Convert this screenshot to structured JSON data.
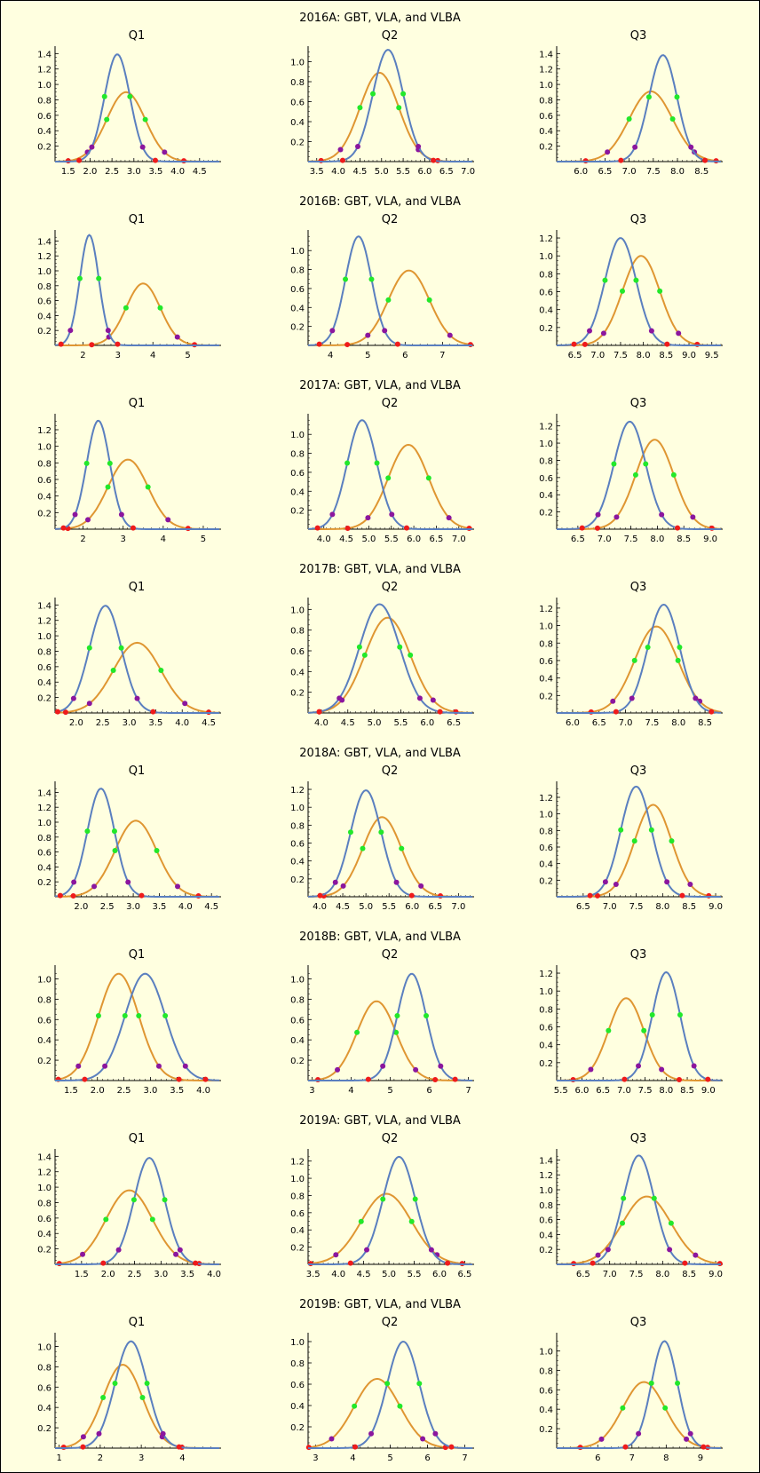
{
  "chart_data": {
    "type": "line",
    "series_styles": {
      "blue": {
        "color": "#5a7fbf"
      },
      "orange": {
        "color": "#df9632"
      }
    },
    "marker_colors": {
      "green": "#22e82a",
      "purple": "#8b169e",
      "red": "#ef1b1b"
    },
    "panels": [
      {
        "title": "2016A:  GBT, VLA, and VLBA",
        "charts": [
          {
            "title": "Q1",
            "xlim": [
              1.2,
              4.95
            ],
            "xticks": [
              "1.5",
              "2.0",
              "2.5",
              "3.0",
              "3.5",
              "4.0",
              "4.5"
            ],
            "ylim": [
              0,
              1.45
            ],
            "yticks": [
              "0.2",
              "0.4",
              "0.6",
              "0.8",
              "1.0",
              "1.2",
              "1.4"
            ],
            "blue": {
              "mu": 2.62,
              "sigma": 0.29,
              "peak": 1.39
            },
            "orange": {
              "mu": 2.82,
              "sigma": 0.44,
              "peak": 0.9
            }
          },
          {
            "title": "Q2",
            "xlim": [
              3.3,
              7.1
            ],
            "xticks": [
              "3.5",
              "4.0",
              "4.5",
              "5.0",
              "5.5",
              "6.0",
              "6.5",
              "7.0"
            ],
            "ylim": [
              0,
              1.12
            ],
            "yticks": [
              "0.2",
              "0.4",
              "0.6",
              "0.8",
              "1.0"
            ],
            "blue": {
              "mu": 5.15,
              "sigma": 0.35,
              "peak": 1.12
            },
            "orange": {
              "mu": 4.95,
              "sigma": 0.45,
              "peak": 0.89
            }
          },
          {
            "title": "Q3",
            "xlim": [
              5.5,
              8.9
            ],
            "xticks": [
              "6.0",
              "6.5",
              "7.0",
              "7.5",
              "8.0",
              "8.5"
            ],
            "ylim": [
              0,
              1.45
            ],
            "yticks": [
              "0.2",
              "0.4",
              "0.6",
              "0.8",
              "1.0",
              "1.2",
              "1.4"
            ],
            "blue": {
              "mu": 7.7,
              "sigma": 0.29,
              "peak": 1.38
            },
            "orange": {
              "mu": 7.45,
              "sigma": 0.45,
              "peak": 0.91
            }
          }
        ]
      },
      {
        "title": "2016B:  GBT, VLA, and VLBA",
        "charts": [
          {
            "title": "Q1",
            "xlim": [
              1.2,
              5.9
            ],
            "xticks": [
              "2",
              "3",
              "4",
              "5"
            ],
            "ylim": [
              0,
              1.5
            ],
            "yticks": [
              "0.2",
              "0.4",
              "0.6",
              "0.8",
              "1.0",
              "1.2",
              "1.4"
            ],
            "blue": {
              "mu": 2.18,
              "sigma": 0.27,
              "peak": 1.48
            },
            "orange": {
              "mu": 3.72,
              "sigma": 0.49,
              "peak": 0.83
            }
          },
          {
            "title": "Q2",
            "xlim": [
              3.4,
              7.8
            ],
            "xticks": [
              "4",
              "5",
              "6",
              "7"
            ],
            "ylim": [
              0,
              1.18
            ],
            "yticks": [
              "0.2",
              "0.4",
              "0.6",
              "0.8",
              "1.0"
            ],
            "blue": {
              "mu": 4.75,
              "sigma": 0.35,
              "peak": 1.15
            },
            "orange": {
              "mu": 6.1,
              "sigma": 0.55,
              "peak": 0.79
            }
          },
          {
            "title": "Q3",
            "xlim": [
              6.1,
              9.7
            ],
            "xticks": [
              "6.5",
              "7.0",
              "7.5",
              "8.0",
              "8.5",
              "9.0",
              "9.5"
            ],
            "ylim": [
              0,
              1.25
            ],
            "yticks": [
              "0.2",
              "0.4",
              "0.6",
              "0.8",
              "1.0",
              "1.2"
            ],
            "blue": {
              "mu": 7.5,
              "sigma": 0.34,
              "peak": 1.2
            },
            "orange": {
              "mu": 7.95,
              "sigma": 0.41,
              "peak": 1.0
            }
          }
        ]
      },
      {
        "title": "2017A:  GBT, VLA, and VLBA",
        "charts": [
          {
            "title": "Q1",
            "xlim": [
              1.3,
              5.4
            ],
            "xticks": [
              "2",
              "3",
              "4",
              "5"
            ],
            "ylim": [
              0,
              1.35
            ],
            "yticks": [
              "0.2",
              "0.4",
              "0.6",
              "0.8",
              "1.0",
              "1.2"
            ],
            "blue": {
              "mu": 2.38,
              "sigma": 0.29,
              "peak": 1.31
            },
            "orange": {
              "mu": 3.12,
              "sigma": 0.5,
              "peak": 0.84
            }
          },
          {
            "title": "Q2",
            "xlim": [
              3.65,
              7.3
            ],
            "xticks": [
              "4.0",
              "4.5",
              "5.0",
              "5.5",
              "6.0",
              "6.5",
              "7.0"
            ],
            "ylim": [
              0,
              1.18
            ],
            "yticks": [
              "0.2",
              "0.4",
              "0.6",
              "0.8",
              "1.0"
            ],
            "blue": {
              "mu": 4.85,
              "sigma": 0.33,
              "peak": 1.15
            },
            "orange": {
              "mu": 5.88,
              "sigma": 0.45,
              "peak": 0.89
            }
          },
          {
            "title": "Q3",
            "xlim": [
              6.1,
              9.2
            ],
            "xticks": [
              "6.5",
              "7.0",
              "7.5",
              "8.0",
              "8.5",
              "9.0"
            ],
            "ylim": [
              0,
              1.3
            ],
            "yticks": [
              "0.2",
              "0.4",
              "0.6",
              "0.8",
              "1.0",
              "1.2"
            ],
            "blue": {
              "mu": 7.48,
              "sigma": 0.3,
              "peak": 1.25
            },
            "orange": {
              "mu": 7.95,
              "sigma": 0.36,
              "peak": 1.04
            }
          }
        ]
      },
      {
        "title": "2017B:  GBT, VLA, and VLBA",
        "charts": [
          {
            "title": "Q1",
            "xlim": [
              1.6,
              4.7
            ],
            "xticks": [
              "2.0",
              "2.5",
              "3.0",
              "3.5",
              "4.0",
              "4.5"
            ],
            "ylim": [
              0,
              1.45
            ],
            "yticks": [
              "0.2",
              "0.4",
              "0.6",
              "0.8",
              "1.0",
              "1.2",
              "1.4"
            ],
            "blue": {
              "mu": 2.55,
              "sigma": 0.3,
              "peak": 1.39
            },
            "orange": {
              "mu": 3.15,
              "sigma": 0.45,
              "peak": 0.91
            }
          },
          {
            "title": "Q2",
            "xlim": [
              3.75,
              6.85
            ],
            "xticks": [
              "4.0",
              "4.5",
              "5.0",
              "5.5",
              "6.0",
              "6.5"
            ],
            "ylim": [
              0,
              1.08
            ],
            "yticks": [
              "0.2",
              "0.4",
              "0.6",
              "0.8",
              "1.0"
            ],
            "blue": {
              "mu": 5.1,
              "sigma": 0.38,
              "peak": 1.05
            },
            "orange": {
              "mu": 5.25,
              "sigma": 0.43,
              "peak": 0.92
            }
          },
          {
            "title": "Q3",
            "xlim": [
              5.7,
              8.8
            ],
            "xticks": [
              "6.0",
              "6.5",
              "7.0",
              "7.5",
              "8.0",
              "8.5"
            ],
            "ylim": [
              0,
              1.28
            ],
            "yticks": [
              "0.2",
              "0.4",
              "0.6",
              "0.8",
              "1.0",
              "1.2"
            ],
            "blue": {
              "mu": 7.72,
              "sigma": 0.3,
              "peak": 1.24
            },
            "orange": {
              "mu": 7.58,
              "sigma": 0.41,
              "peak": 0.99
            }
          }
        ]
      },
      {
        "title": "2018A:  GBT, VLA, and VLBA",
        "charts": [
          {
            "title": "Q1",
            "xlim": [
              1.5,
              4.65
            ],
            "xticks": [
              "2.0",
              "2.5",
              "3.0",
              "3.5",
              "4.0",
              "4.5"
            ],
            "ylim": [
              0,
              1.5
            ],
            "yticks": [
              "0.2",
              "0.4",
              "0.6",
              "0.8",
              "1.0",
              "1.2",
              "1.4"
            ],
            "blue": {
              "mu": 2.38,
              "sigma": 0.26,
              "peak": 1.45
            },
            "orange": {
              "mu": 3.05,
              "sigma": 0.4,
              "peak": 1.02
            }
          },
          {
            "title": "Q2",
            "xlim": [
              3.75,
              7.3
            ],
            "xticks": [
              "4.0",
              "4.5",
              "5.0",
              "5.5",
              "6.0",
              "6.5",
              "7.0"
            ],
            "ylim": [
              0,
              1.25
            ],
            "yticks": [
              "0.2",
              "0.4",
              "0.6",
              "0.8",
              "1.0",
              "1.2"
            ],
            "blue": {
              "mu": 5.0,
              "sigma": 0.33,
              "peak": 1.19
            },
            "orange": {
              "mu": 5.35,
              "sigma": 0.42,
              "peak": 0.89
            }
          },
          {
            "title": "Q3",
            "xlim": [
              6.0,
              9.1
            ],
            "xticks": [
              "6.5",
              "7.0",
              "7.5",
              "8.0",
              "8.5",
              "9.0"
            ],
            "ylim": [
              0,
              1.35
            ],
            "yticks": [
              "0.2",
              "0.4",
              "0.6",
              "0.8",
              "1.0",
              "1.2"
            ],
            "blue": {
              "mu": 7.5,
              "sigma": 0.29,
              "peak": 1.33
            },
            "orange": {
              "mu": 7.82,
              "sigma": 0.35,
              "peak": 1.11
            }
          }
        ]
      },
      {
        "title": "2018B:  GBT, VLA, and VLBA",
        "charts": [
          {
            "title": "Q1",
            "xlim": [
              1.2,
              4.3
            ],
            "xticks": [
              "1.5",
              "2.0",
              "2.5",
              "3.0",
              "3.5",
              "4.0"
            ],
            "ylim": [
              0,
              1.1
            ],
            "yticks": [
              "0.2",
              "0.4",
              "0.6",
              "0.8",
              "1.0"
            ],
            "blue": {
              "mu": 2.9,
              "sigma": 0.38,
              "peak": 1.05
            },
            "orange": {
              "mu": 2.4,
              "sigma": 0.38,
              "peak": 1.05
            }
          },
          {
            "title": "Q2",
            "xlim": [
              2.9,
              7.1
            ],
            "xticks": [
              "3",
              "4",
              "5",
              "6",
              "7"
            ],
            "ylim": [
              0,
              1.1
            ],
            "yticks": [
              "0.2",
              "0.4",
              "0.6",
              "0.8",
              "1.0"
            ],
            "blue": {
              "mu": 5.55,
              "sigma": 0.37,
              "peak": 1.05
            },
            "orange": {
              "mu": 4.65,
              "sigma": 0.5,
              "peak": 0.78
            }
          },
          {
            "title": "Q3",
            "xlim": [
              5.4,
              9.3
            ],
            "xticks": [
              "5.5",
              "6.0",
              "6.5",
              "7.0",
              "7.5",
              "8.0",
              "8.5",
              "9.0"
            ],
            "ylim": [
              0,
              1.25
            ],
            "yticks": [
              "0.2",
              "0.4",
              "0.6",
              "0.8",
              "1.0",
              "1.2"
            ],
            "blue": {
              "mu": 8.0,
              "sigma": 0.33,
              "peak": 1.21
            },
            "orange": {
              "mu": 7.05,
              "sigma": 0.42,
              "peak": 0.92
            }
          }
        ]
      },
      {
        "title": "2019A:  GBT, VLA, and VLBA",
        "charts": [
          {
            "title": "Q1",
            "xlim": [
              1.0,
              4.1
            ],
            "xticks": [
              "1.5",
              "2.0",
              "2.5",
              "3.0",
              "3.5",
              "4.0"
            ],
            "ylim": [
              0,
              1.45
            ],
            "yticks": [
              "0.2",
              "0.4",
              "0.6",
              "0.8",
              "1.0",
              "1.2",
              "1.4"
            ],
            "blue": {
              "mu": 2.78,
              "sigma": 0.29,
              "peak": 1.38
            },
            "orange": {
              "mu": 2.4,
              "sigma": 0.44,
              "peak": 0.96
            }
          },
          {
            "title": "Q2",
            "xlim": [
              3.4,
              6.65
            ],
            "xticks": [
              "3.5",
              "4.0",
              "4.5",
              "5.0",
              "5.5",
              "6.0",
              "6.5"
            ],
            "ylim": [
              0,
              1.3
            ],
            "yticks": [
              "0.2",
              "0.4",
              "0.6",
              "0.8",
              "1.0",
              "1.2"
            ],
            "blue": {
              "mu": 5.2,
              "sigma": 0.32,
              "peak": 1.25
            },
            "orange": {
              "mu": 4.95,
              "sigma": 0.5,
              "peak": 0.82
            }
          },
          {
            "title": "Q3",
            "xlim": [
              6.0,
              9.1
            ],
            "xticks": [
              "6.5",
              "7.0",
              "7.5",
              "8.0",
              "8.5",
              "9.0"
            ],
            "ylim": [
              0,
              1.5
            ],
            "yticks": [
              "0.2",
              "0.4",
              "0.6",
              "0.8",
              "1.0",
              "1.2",
              "1.4"
            ],
            "blue": {
              "mu": 7.55,
              "sigma": 0.29,
              "peak": 1.46
            },
            "orange": {
              "mu": 7.7,
              "sigma": 0.46,
              "peak": 0.91
            }
          }
        ]
      },
      {
        "title": "2019B:  GBT, VLA, and VLBA",
        "charts": [
          {
            "title": "Q1",
            "xlim": [
              0.9,
              4.9
            ],
            "xticks": [
              "1",
              "2",
              "3",
              "4"
            ],
            "ylim": [
              0,
              1.1
            ],
            "yticks": [
              "0.2",
              "0.4",
              "0.6",
              "0.8",
              "1.0"
            ],
            "blue": {
              "mu": 2.75,
              "sigma": 0.39,
              "peak": 1.05
            },
            "orange": {
              "mu": 2.55,
              "sigma": 0.48,
              "peak": 0.82
            }
          },
          {
            "title": "Q2",
            "xlim": [
              2.8,
              7.2
            ],
            "xticks": [
              "3",
              "4",
              "5",
              "6",
              "7"
            ],
            "ylim": [
              0,
              1.05
            ],
            "yticks": [
              "0.2",
              "0.4",
              "0.6",
              "0.8",
              "1.0"
            ],
            "blue": {
              "mu": 5.35,
              "sigma": 0.43,
              "peak": 1.0
            },
            "orange": {
              "mu": 4.65,
              "sigma": 0.61,
              "peak": 0.65
            }
          },
          {
            "title": "Q3",
            "xlim": [
              4.8,
              9.6
            ],
            "xticks": [
              "6",
              "7",
              "8",
              "9"
            ],
            "ylim": [
              0,
              1.15
            ],
            "yticks": [
              "0.2",
              "0.4",
              "0.6",
              "0.8",
              "1.0"
            ],
            "blue": {
              "mu": 7.95,
              "sigma": 0.38,
              "peak": 1.1
            },
            "orange": {
              "mu": 7.35,
              "sigma": 0.62,
              "peak": 0.68
            }
          }
        ]
      }
    ]
  }
}
